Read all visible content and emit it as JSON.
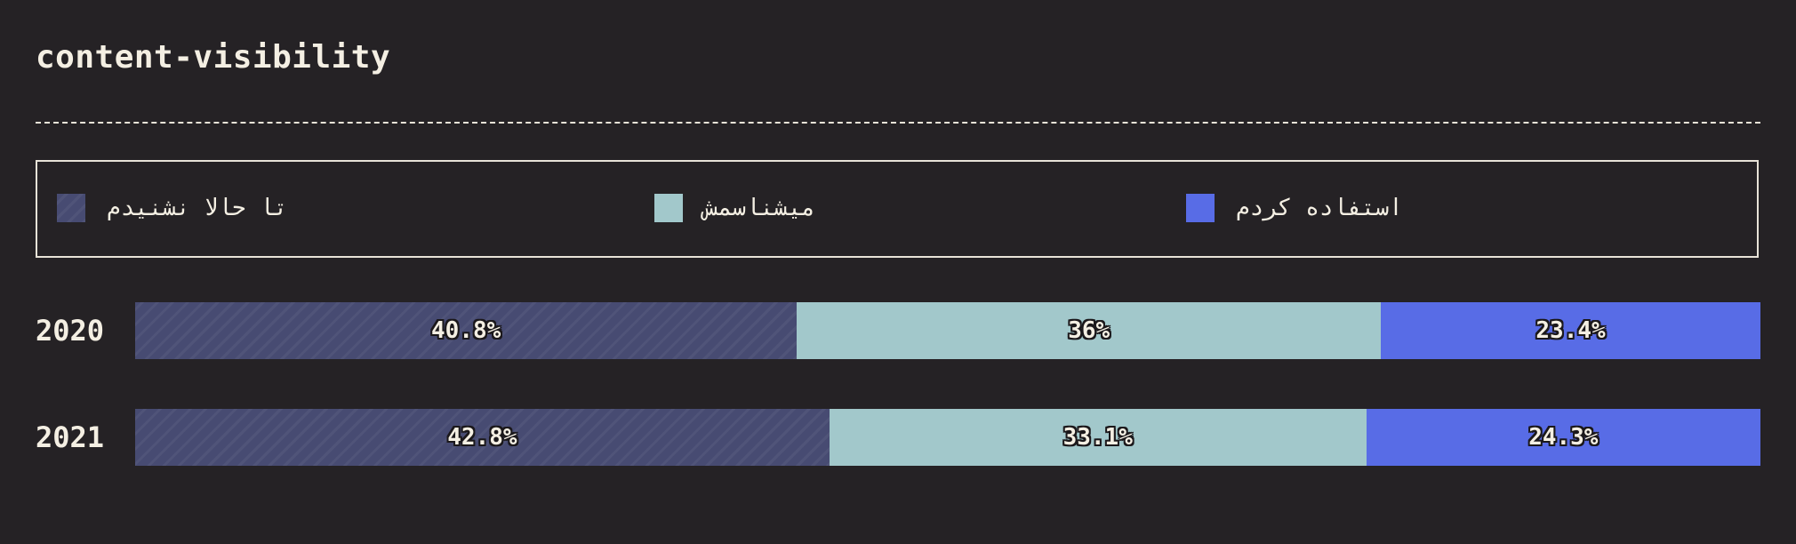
{
  "title": "content-visibility",
  "colors": {
    "background": "#252225",
    "never_heard": "#474b72",
    "know_it": "#a2c8cb",
    "used_it": "#586ce6",
    "text": "#f4efe3"
  },
  "legend": [
    {
      "label": "تا حالا نشنیدم",
      "color": "#474b72"
    },
    {
      "label": "میشناسمش",
      "color": "#a2c8cb"
    },
    {
      "label": "استفاده کردم",
      "color": "#586ce6"
    }
  ],
  "chart_data": {
    "type": "bar",
    "orientation": "horizontal",
    "stacked": true,
    "normalized": true,
    "title": "content-visibility",
    "categories": [
      "2020",
      "2021"
    ],
    "series": [
      {
        "name": "تا حالا نشنیدم",
        "values": [
          40.8,
          42.8
        ],
        "labels": [
          "40.8%",
          "42.8%"
        ],
        "color": "#474b72"
      },
      {
        "name": "میشناسمش",
        "values": [
          36,
          33.1
        ],
        "labels": [
          "36%",
          "33.1%"
        ],
        "color": "#a2c8cb"
      },
      {
        "name": "استفاده کردم",
        "values": [
          23.4,
          24.3
        ],
        "labels": [
          "23.4%",
          "24.3%"
        ],
        "color": "#586ce6"
      }
    ],
    "legend_position": "top"
  }
}
